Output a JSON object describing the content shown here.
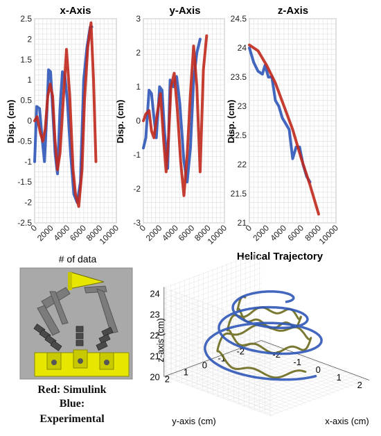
{
  "figure": {
    "xlabel_shared": "# of data",
    "legend_lines": [
      "Red: Simulink",
      "Blue:",
      "Experimental"
    ]
  },
  "colors": {
    "simulink": "#c0281c",
    "experimental": "#2f56b8",
    "mixed": "#6b6a1e",
    "robot_yellow": "#e6e600",
    "robot_gray": "#a9a9a9"
  },
  "chart_data": [
    {
      "type": "line",
      "title": "x-Axis",
      "ylabel": "Disp. (cm)",
      "xlabel": "# of data",
      "xlim": [
        0,
        10000
      ],
      "ylim": [
        -2.5,
        2.5
      ],
      "xticks": [
        "0",
        "2000",
        "4000",
        "6000",
        "8000",
        "10000"
      ],
      "yticks": [
        "-2.5",
        "-2",
        "-1.5",
        "-1",
        "-0.5",
        "0",
        "0.5",
        "1",
        "1.5",
        "2",
        "2.5"
      ],
      "series": [
        {
          "color": "#2f56b8",
          "x": [
            0,
            250,
            600,
            900,
            1200,
            1500,
            1700,
            1950,
            2200,
            2500,
            2800,
            3100,
            3400,
            3700,
            4000,
            4400,
            4800,
            5200,
            5600,
            6000,
            6400,
            6800,
            7000
          ],
          "y": [
            -1.0,
            0.35,
            0.3,
            -0.4,
            -1.0,
            0.2,
            1.25,
            1.2,
            0.3,
            -0.8,
            -1.3,
            0.3,
            1.2,
            1.1,
            0.5,
            -0.8,
            -1.8,
            -2.0,
            -1.5,
            1.0,
            1.8,
            2.3,
            2.3
          ]
        },
        {
          "color": "#c0281c",
          "x": [
            0,
            300,
            700,
            1000,
            1300,
            1600,
            1900,
            2200,
            2500,
            2800,
            3100,
            3500,
            3900,
            4300,
            4700,
            5000,
            5400,
            5800,
            6100,
            6500,
            6900,
            7200,
            7500
          ],
          "y": [
            0.0,
            0.1,
            -0.3,
            -0.5,
            -0.2,
            0.6,
            0.9,
            0.6,
            -0.5,
            -1.2,
            -0.8,
            0.5,
            1.75,
            0.6,
            -1.2,
            -1.8,
            -2.1,
            -1.2,
            0.5,
            1.8,
            2.4,
            1.0,
            -1.0
          ]
        }
      ]
    },
    {
      "type": "line",
      "title": "y-Axis",
      "ylabel": "Disp. (cm)",
      "xlabel": "",
      "xlim": [
        0,
        10000
      ],
      "ylim": [
        -3,
        3
      ],
      "xticks": [
        "0",
        "2000",
        "4000",
        "6000",
        "8000",
        "10000"
      ],
      "yticks": [
        "-3",
        "-2",
        "-1",
        "0",
        "1",
        "2",
        "3"
      ],
      "series": [
        {
          "color": "#2f56b8",
          "x": [
            0,
            300,
            700,
            1000,
            1300,
            1600,
            2000,
            2300,
            2600,
            3000,
            3300,
            3700,
            4100,
            4500,
            5000,
            5400,
            5800,
            6200,
            6600,
            7000
          ],
          "y": [
            -0.8,
            -0.5,
            0.9,
            0.8,
            0.1,
            -0.5,
            1.0,
            0.9,
            -0.3,
            -1.4,
            1.2,
            1.0,
            1.3,
            0.5,
            -1.2,
            -1.8,
            -0.8,
            1.2,
            2.0,
            2.4
          ]
        },
        {
          "color": "#c0281c",
          "x": [
            0,
            300,
            700,
            1000,
            1300,
            1700,
            2100,
            2500,
            2800,
            3100,
            3400,
            3800,
            4200,
            4600,
            5000,
            5400,
            5800,
            6200,
            6600,
            7000,
            7400,
            7800
          ],
          "y": [
            0.0,
            0.2,
            0.3,
            -0.3,
            -0.5,
            0.2,
            0.8,
            -0.6,
            -1.5,
            -0.5,
            1.0,
            1.4,
            0.3,
            -1.2,
            -2.2,
            -1.0,
            0.8,
            2.2,
            1.0,
            -1.5,
            1.5,
            2.5
          ]
        }
      ]
    },
    {
      "type": "line",
      "title": "z-Axis",
      "ylabel": "Disp. (cm)",
      "xlabel": "",
      "xlim": [
        0,
        10000
      ],
      "ylim": [
        21,
        24.5
      ],
      "xticks": [
        "0",
        "2000",
        "4000",
        "6000",
        "8000",
        "10000"
      ],
      "yticks": [
        "21",
        "21.5",
        "22",
        "22.5",
        "23",
        "23.5",
        "24",
        "24.5"
      ],
      "series": [
        {
          "color": "#2f56b8",
          "x": [
            0,
            500,
            1000,
            1500,
            1800,
            2200,
            2600,
            3000,
            3400,
            3800,
            4200,
            4600,
            5000,
            5400,
            5800,
            6200,
            6600,
            7000
          ],
          "y": [
            24.0,
            23.75,
            23.6,
            23.55,
            23.7,
            23.5,
            23.5,
            23.1,
            23.0,
            22.8,
            22.7,
            22.6,
            22.1,
            22.3,
            22.3,
            22.0,
            21.8,
            21.7
          ]
        },
        {
          "color": "#c0281c",
          "x": [
            0,
            1000,
            2000,
            3000,
            4000,
            5000,
            6000,
            7000,
            8000
          ],
          "y": [
            24.05,
            23.95,
            23.7,
            23.4,
            23.0,
            22.6,
            22.1,
            21.65,
            21.15
          ]
        }
      ]
    },
    {
      "type": "line",
      "title": "Helical Trajectory",
      "xlabel": "x-axis (cm)",
      "ylabel": "y-axis (cm)",
      "zlabel": "z-axis (cm)",
      "xticks": [
        "-2",
        "-1",
        "0",
        "1",
        "2"
      ],
      "yticks": [
        "-2",
        "-1",
        "0",
        "1",
        "2"
      ],
      "zticks": [
        "20",
        "21",
        "22",
        "23",
        "24"
      ],
      "zlim": [
        20,
        24
      ],
      "series": [
        {
          "color": "#2f56b8",
          "helix": {
            "radius_start": 2.4,
            "radius_end": 0.9,
            "z_start": 21.0,
            "z_end": 24.0,
            "turns": 3
          }
        },
        {
          "color": "#6b6a1e",
          "helix": {
            "radius_start": 1.9,
            "radius_end": 1.0,
            "z_start": 21.0,
            "z_end": 23.5,
            "turns": 2.5
          }
        }
      ]
    }
  ]
}
